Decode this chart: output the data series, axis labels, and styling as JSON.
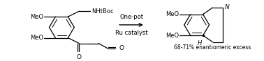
{
  "background_color": "#ffffff",
  "figsize": [
    3.78,
    0.88
  ],
  "dpi": 100,
  "arrow_label_top": "One-pot",
  "arrow_label_bottom": "Ru catalyst",
  "ee_text": "68-71% enantiomeric excess"
}
